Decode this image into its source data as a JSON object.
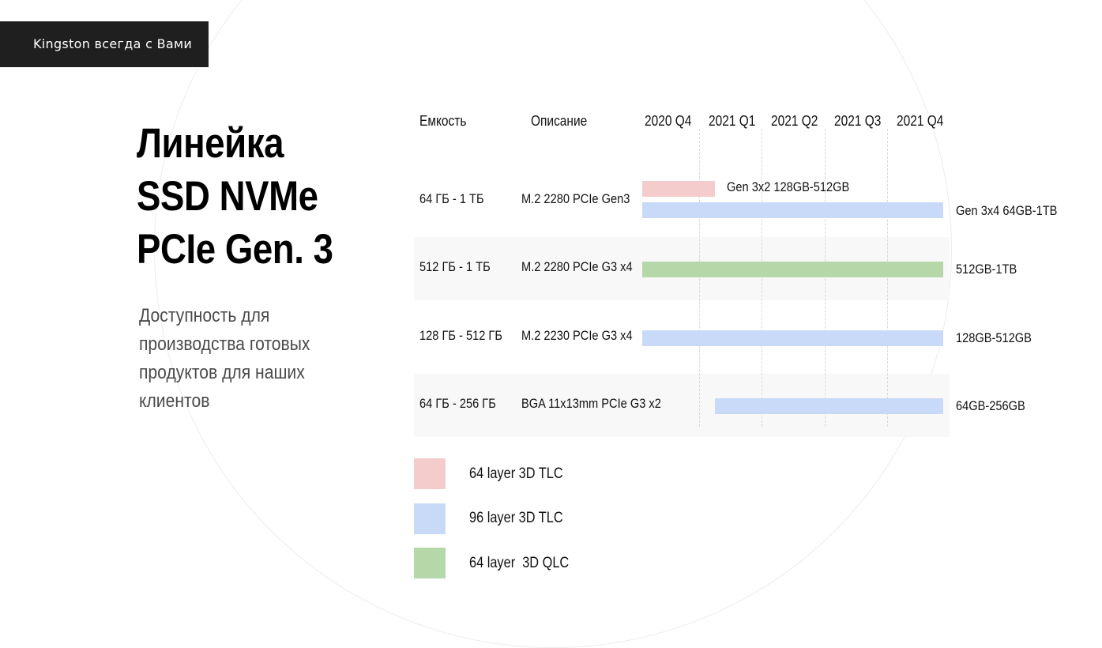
{
  "brand": {
    "text": "Kingston всегда с Вами"
  },
  "title": {
    "line1": "Линейка",
    "line2": "SSD NVMe",
    "line3": "PCIe Gen. 3"
  },
  "subtitle": "Доступность для производства готовых продуктов для наших клиентов",
  "table": {
    "headers": {
      "capacity": "Емкость",
      "description": "Описание"
    },
    "quarters": [
      "2020 Q4",
      "2021 Q1",
      "2021 Q2",
      "2021 Q3",
      "2021 Q4"
    ],
    "rows": [
      {
        "capacity": "64 ГБ - 1 ТБ",
        "description": "M.2 2280 PCIe Gen3",
        "bars": [
          {
            "label": "Gen 3x2 128GB-512GB",
            "nand": "64 layer 3D TLC",
            "start": "2020 Q4",
            "end": "early 2021 Q1",
            "color": "#f4cccc"
          },
          {
            "label": "Gen 3x4 64GB-1TB",
            "nand": "96 layer 3D TLC",
            "start": "2020 Q4",
            "end": "2021 Q4",
            "color": "#c9daf8"
          }
        ]
      },
      {
        "capacity": "512 ГБ - 1 ТБ",
        "description": "M.2 2280 PCIe G3 x4",
        "bars": [
          {
            "label": "512GB-1TB",
            "nand": "64 layer  3D QLC",
            "start": "2020 Q4",
            "end": "2021 Q4",
            "color": "#b6d7a8"
          }
        ]
      },
      {
        "capacity": "128 ГБ - 512 ГБ",
        "description": "M.2 2230 PCIe G3 x4",
        "bars": [
          {
            "label": "128GB-512GB",
            "nand": "96 layer 3D TLC",
            "start": "2020 Q4",
            "end": "2021 Q4",
            "color": "#c9daf8"
          }
        ]
      },
      {
        "capacity": "64 ГБ - 256 ГБ",
        "description": "BGA 11x13mm PCIe G3 x2",
        "bars": [
          {
            "label": "64GB-256GB",
            "nand": "96 layer 3D TLC",
            "start": "2021 Q1",
            "end": "2021 Q4",
            "color": "#c9daf8"
          }
        ]
      }
    ]
  },
  "legend": [
    {
      "label": "64 layer 3D TLC",
      "color": "#f4cccc"
    },
    {
      "label": "96 layer 3D TLC",
      "color": "#c9daf8"
    },
    {
      "label": "64 layer  3D QLC",
      "color": "#b6d7a8"
    }
  ]
}
